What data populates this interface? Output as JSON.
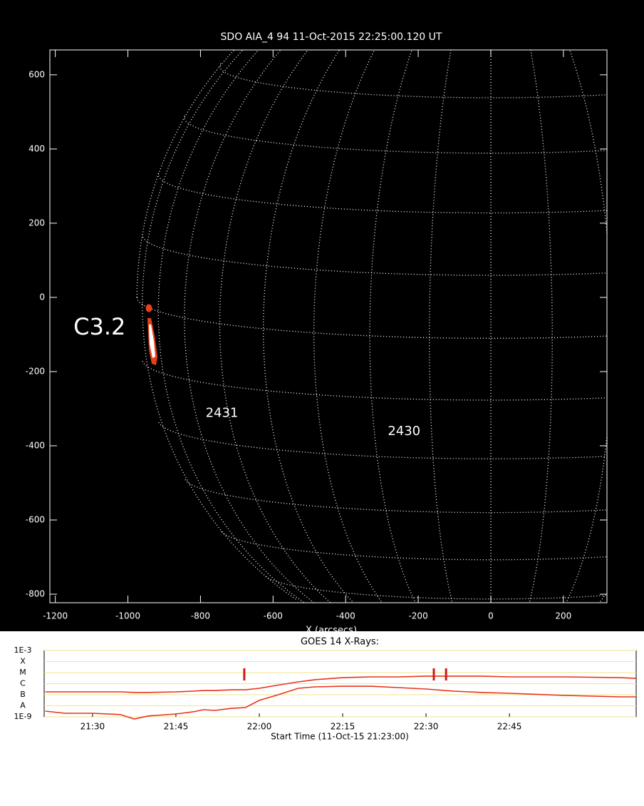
{
  "chart_data": [
    {
      "type": "map",
      "title": "SDO AIA_4 94 11-Oct-2015 22:25:00.120 UT",
      "x_label": "X (arcsecs)",
      "xlim": [
        -1215,
        320
      ],
      "ylim": [
        -823,
        667
      ],
      "xticks": [
        -1200,
        -1000,
        -800,
        -600,
        -400,
        -200,
        0,
        200
      ],
      "yticks": [
        -800,
        -600,
        -400,
        -200,
        0,
        200,
        400,
        600
      ],
      "annotations": [
        {
          "text": "C3.2",
          "x": -1078,
          "y": -83
        },
        {
          "text": "2431",
          "x": -741,
          "y": -313
        },
        {
          "text": "2430",
          "x": -239,
          "y": -362
        }
      ]
    },
    {
      "type": "line",
      "title": "GOES 14 X-Rays:",
      "x_label": "Start Time (11-Oct-15 21:23:00)",
      "log_y": true,
      "grid": true,
      "grid_color": "#f0e68c",
      "xlim": [
        1281.3,
        1387.8
      ],
      "ylim": [
        1e-09,
        0.001
      ],
      "xticks": [
        {
          "value": 1290,
          "label": "21:30"
        },
        {
          "value": 1305,
          "label": "21:45"
        },
        {
          "value": 1320,
          "label": "22:00"
        },
        {
          "value": 1335,
          "label": "22:15"
        },
        {
          "value": 1350,
          "label": "22:30"
        },
        {
          "value": 1365,
          "label": "22:45"
        }
      ],
      "yticks": [
        {
          "value": 0.001,
          "label": "1E-3"
        },
        {
          "value": 0.0001,
          "label": "X"
        },
        {
          "value": 1e-05,
          "label": "M"
        },
        {
          "value": 1e-06,
          "label": "C"
        },
        {
          "value": 1e-07,
          "label": "B"
        },
        {
          "value": 1e-08,
          "label": "A"
        },
        {
          "value": 1e-09,
          "label": "1E-9"
        }
      ],
      "x": [
        1281.5,
        1285,
        1290,
        1295,
        1297.5,
        1300,
        1305,
        1308,
        1310,
        1312,
        1315,
        1317.5,
        1320,
        1323,
        1327,
        1330,
        1335,
        1340,
        1345,
        1350,
        1355,
        1360,
        1365,
        1375,
        1385,
        1387.8
      ],
      "series": [
        {
          "color": "#e8331c",
          "values": [
            1.8e-07,
            1.8e-07,
            1.8e-07,
            1.8e-07,
            1.6e-07,
            1.6e-07,
            1.8e-07,
            2.1e-07,
            2.4e-07,
            2.4e-07,
            2.8e-07,
            2.8e-07,
            3.8e-07,
            6.9e-07,
            1.45e-06,
            2.3e-06,
            3.5e-06,
            4.1e-06,
            4.1e-06,
            4.8e-06,
            4.8e-06,
            4.8e-06,
            4.1e-06,
            4.1e-06,
            3.5e-06,
            3e-06
          ]
        },
        {
          "color": "#e8331c",
          "values": [
            3.3e-09,
            2.1e-09,
            2.1e-09,
            1.6e-09,
            6.4e-10,
            1.2e-09,
            1.8e-09,
            2.8e-09,
            4.4e-09,
            3.8e-09,
            5.9e-09,
            6.9e-09,
            3.1e-08,
            8.6e-08,
            3.8e-07,
            5.1e-07,
            5.9e-07,
            5.9e-07,
            4.4e-07,
            3.3e-07,
            2.1e-07,
            1.6e-07,
            1.35e-07,
            8.6e-08,
            6.4e-08,
            6.4e-08
          ]
        }
      ],
      "markers": [
        1317.3,
        1351.4,
        1353.6
      ],
      "marker_color": "#cc1a1a"
    }
  ]
}
